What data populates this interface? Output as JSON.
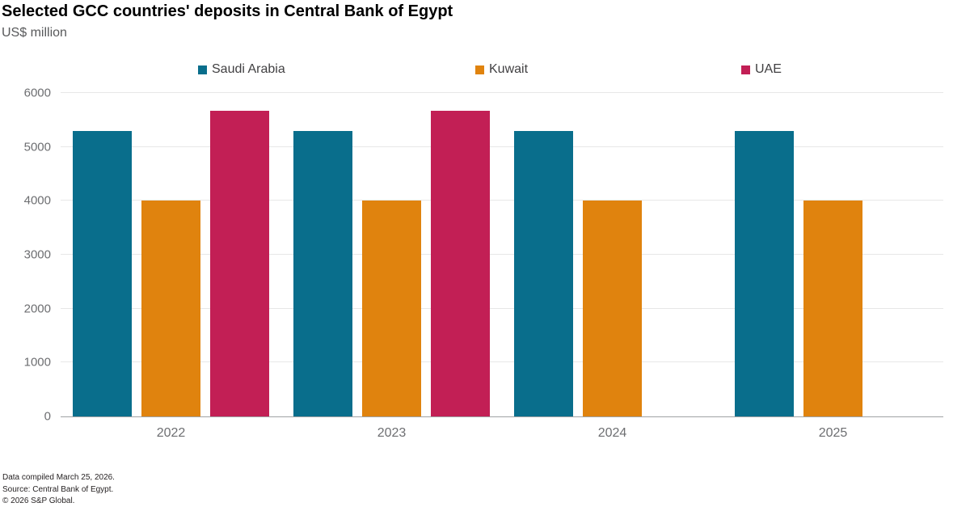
{
  "header": {
    "title": "Selected GCC countries' deposits in Central Bank of Egypt",
    "subtitle": "US$ million"
  },
  "chart_data": {
    "type": "bar",
    "title": "Selected GCC countries' deposits in Central Bank of Egypt",
    "subtitle": "US$ million",
    "categories": [
      "2022",
      "2023",
      "2024",
      "2025"
    ],
    "series": [
      {
        "name": "Saudi Arabia",
        "color": "#096e8c",
        "values": [
          5300,
          5300,
          5300,
          5300
        ]
      },
      {
        "name": "Kuwait",
        "color": "#e0830e",
        "values": [
          4000,
          4000,
          4000,
          4000
        ]
      },
      {
        "name": "UAE",
        "color": "#c21f55",
        "values": [
          5670,
          5670,
          null,
          null
        ]
      }
    ],
    "xlabel": "",
    "ylabel": "US$ million",
    "ylim": [
      0,
      6000
    ],
    "yticks": [
      0,
      1000,
      2000,
      3000,
      4000,
      5000,
      6000
    ],
    "grid": "horizontal",
    "legend_position": "top"
  },
  "footer": {
    "lines": [
      "Data compiled March 25, 2026.",
      "Source: Central Bank of Egypt.",
      "© 2026 S&P Global."
    ]
  }
}
